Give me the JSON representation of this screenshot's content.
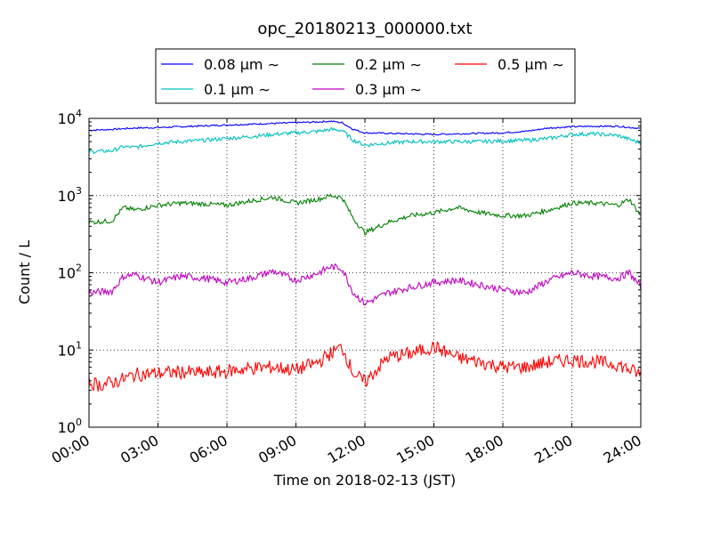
{
  "chart_data": {
    "type": "line",
    "title": "opc_20180213_000000.txt",
    "xlabel": "Time on 2018-02-13 (JST)",
    "ylabel": "Count / L",
    "x_ticks": [
      "00:00",
      "03:00",
      "06:00",
      "09:00",
      "12:00",
      "15:00",
      "18:00",
      "21:00",
      "24:00"
    ],
    "x_tick_hours": [
      0,
      3,
      6,
      9,
      12,
      15,
      18,
      21,
      24
    ],
    "xlim_hours": [
      0,
      24
    ],
    "y_scale": "log",
    "ylim": [
      1,
      10000
    ],
    "y_ticks": [
      {
        "value": 1,
        "base": "10",
        "exp": "0"
      },
      {
        "value": 10,
        "base": "10",
        "exp": "1"
      },
      {
        "value": 100,
        "base": "10",
        "exp": "2"
      },
      {
        "value": 1000,
        "base": "10",
        "exp": "3"
      },
      {
        "value": 10000,
        "base": "10",
        "exp": "4"
      }
    ],
    "grid": true,
    "legend_position": "above plot, centered",
    "legend_columns": 3,
    "series": [
      {
        "name": "0.08 μm ∼",
        "color": "#0000ff",
        "x": [
          0,
          1,
          2,
          3,
          4,
          5,
          6,
          7,
          8,
          9,
          10,
          10.5,
          11,
          11.5,
          12,
          13,
          14,
          15,
          16,
          17,
          18,
          19,
          20,
          21,
          22,
          23,
          24
        ],
        "y": [
          7000,
          7200,
          7500,
          7600,
          7800,
          8000,
          8200,
          8400,
          8600,
          8800,
          9000,
          9200,
          8800,
          7200,
          6500,
          6400,
          6300,
          6200,
          6300,
          6400,
          6500,
          6800,
          7500,
          7800,
          7900,
          7900,
          7400
        ]
      },
      {
        "name": "0.1 μm ∼",
        "color": "#00bfbf",
        "x": [
          0,
          1,
          1.5,
          2,
          3,
          4,
          5,
          6,
          7,
          8,
          9,
          10,
          10.5,
          11,
          11.5,
          12,
          13,
          14,
          15,
          16,
          17,
          18,
          19,
          20,
          21,
          22,
          23,
          24
        ],
        "y": [
          3700,
          3800,
          4300,
          4200,
          4800,
          5000,
          5200,
          5500,
          5800,
          6200,
          6500,
          6800,
          7200,
          7000,
          5200,
          4500,
          4800,
          5000,
          5000,
          5000,
          5000,
          5100,
          5200,
          5500,
          6200,
          6300,
          6000,
          4800
        ]
      },
      {
        "name": "0.2 μm ∼",
        "color": "#008000",
        "x": [
          0,
          1,
          1.5,
          2,
          3,
          4,
          5,
          6,
          7,
          8,
          9,
          10,
          10.5,
          11,
          11.5,
          12,
          13,
          14,
          15,
          16,
          17,
          18,
          19,
          20,
          21,
          22,
          23,
          23.5,
          24
        ],
        "y": [
          450,
          470,
          700,
          650,
          750,
          800,
          780,
          750,
          850,
          950,
          800,
          900,
          1000,
          950,
          500,
          330,
          450,
          550,
          600,
          700,
          600,
          550,
          550,
          650,
          800,
          800,
          750,
          900,
          550
        ]
      },
      {
        "name": "0.3 μm ∼",
        "color": "#bf00bf",
        "x": [
          0,
          1,
          1.5,
          2,
          3,
          4,
          5,
          6,
          7,
          8,
          9,
          10,
          10.5,
          11,
          11.5,
          12,
          13,
          14,
          15,
          16,
          17,
          18,
          19,
          20,
          21,
          22,
          23,
          23.5,
          24
        ],
        "y": [
          55,
          58,
          90,
          95,
          75,
          90,
          85,
          75,
          85,
          105,
          80,
          100,
          120,
          115,
          55,
          40,
          55,
          65,
          75,
          80,
          70,
          60,
          55,
          80,
          100,
          90,
          85,
          100,
          65
        ]
      },
      {
        "name": "0.5 μm ∼",
        "color": "#ff0000",
        "x": [
          0,
          0.5,
          1,
          1.5,
          2,
          3,
          4,
          5,
          6,
          7,
          8,
          9,
          10,
          10.5,
          11,
          11.5,
          12,
          13,
          14,
          15,
          16,
          17,
          18,
          19,
          20,
          21,
          22,
          23,
          24
        ],
        "y": [
          3.8,
          3.5,
          3.8,
          4.2,
          4.8,
          5,
          5.2,
          5,
          5.3,
          5.8,
          6,
          5.5,
          7,
          9,
          11,
          5,
          3.8,
          8,
          9,
          11,
          8,
          7,
          6,
          6,
          7,
          7.5,
          7,
          6.5,
          4.8
        ]
      }
    ]
  }
}
